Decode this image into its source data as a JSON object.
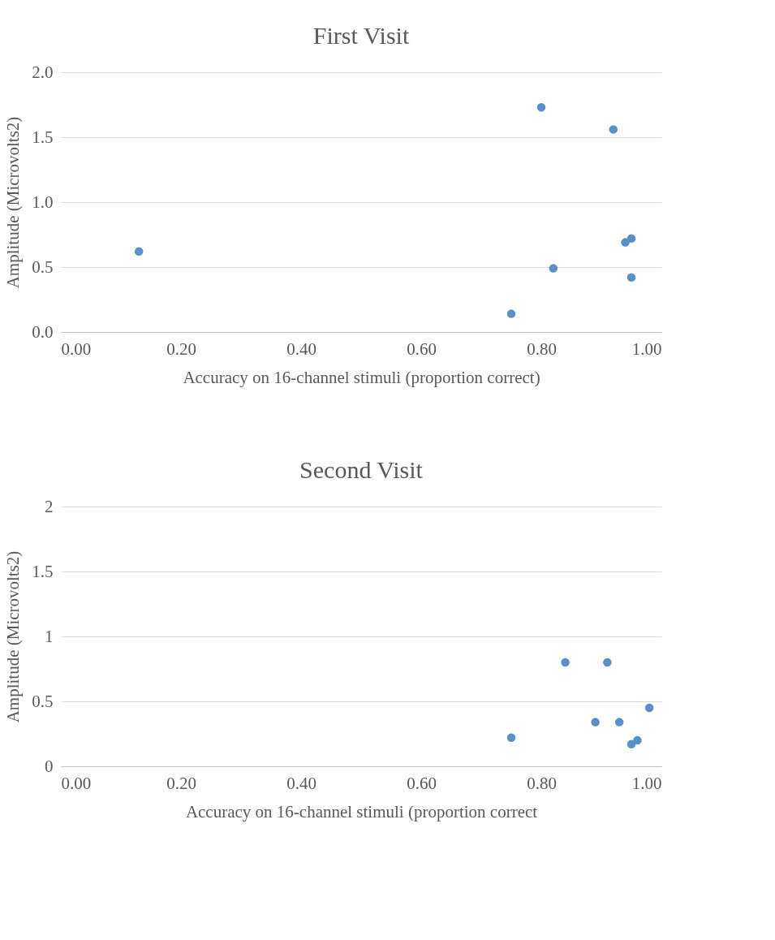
{
  "chart_data": [
    {
      "type": "scatter",
      "title": "First Visit",
      "xlabel": "Accuracy on 16-channel stimuli (proportion correct)",
      "ylabel": "Amplitude (Microvolts2)",
      "x": [
        0.13,
        0.8,
        0.92,
        0.82,
        0.75,
        0.94,
        0.95,
        0.95
      ],
      "series": [
        {
          "color": "#5b8fc9",
          "values": [
            0.62,
            1.73,
            1.56,
            0.49,
            0.14,
            0.69,
            0.72,
            0.42
          ]
        }
      ],
      "xlim": [
        0,
        1
      ],
      "ylim": [
        0,
        2
      ],
      "xticks": [
        {
          "value": 0,
          "label": "0.00"
        },
        {
          "value": 0.2,
          "label": "0.20"
        },
        {
          "value": 0.4,
          "label": "0.40"
        },
        {
          "value": 0.6,
          "label": "0.60"
        },
        {
          "value": 0.8,
          "label": "0.80"
        },
        {
          "value": 1,
          "label": "1.00"
        }
      ],
      "yticks": [
        {
          "value": 0,
          "label": "0.0"
        },
        {
          "value": 0.5,
          "label": "0.5"
        },
        {
          "value": 1,
          "label": "1.0"
        },
        {
          "value": 1.5,
          "label": "1.5"
        },
        {
          "value": 2,
          "label": "2.0"
        }
      ],
      "grid": "y",
      "marker": "circle",
      "legend": false
    },
    {
      "type": "scatter",
      "title": "Second Visit",
      "xlabel": "Accuracy on 16-channel stimuli (proportion correct",
      "ylabel": "Amplitude (Microvolts2)",
      "x": [
        0.75,
        0.84,
        0.91,
        0.89,
        0.93,
        0.95,
        0.96,
        0.98
      ],
      "series": [
        {
          "color": "#5b8fc9",
          "values": [
            0.22,
            0.8,
            0.8,
            0.34,
            0.34,
            0.17,
            0.2,
            0.45
          ]
        }
      ],
      "xlim": [
        0,
        1
      ],
      "ylim": [
        0,
        2
      ],
      "xticks": [
        {
          "value": 0,
          "label": "0.00"
        },
        {
          "value": 0.2,
          "label": "0.20"
        },
        {
          "value": 0.4,
          "label": "0.40"
        },
        {
          "value": 0.6,
          "label": "0.60"
        },
        {
          "value": 0.8,
          "label": "0.80"
        },
        {
          "value": 1,
          "label": "1.00"
        }
      ],
      "yticks": [
        0,
        0.5,
        1,
        1.5,
        2
      ],
      "grid": "y",
      "marker": "circle",
      "legend": false
    }
  ]
}
